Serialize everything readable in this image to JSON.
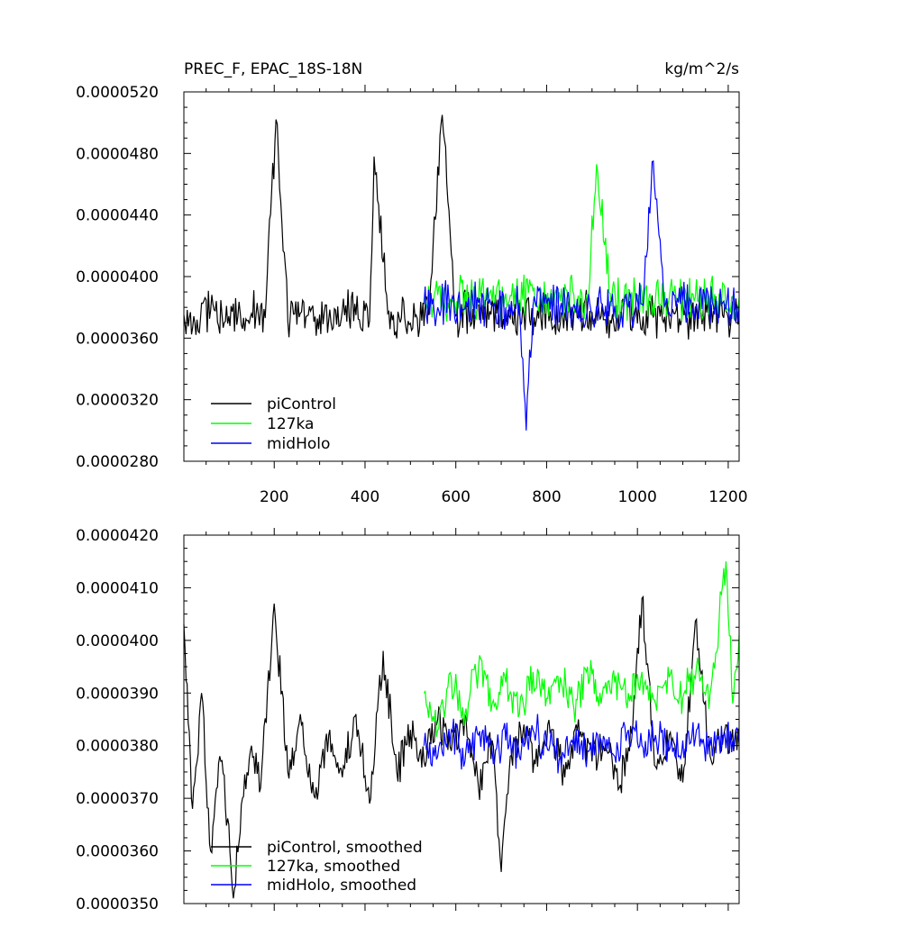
{
  "chart_data": [
    {
      "type": "line",
      "title_left": "PREC_F, EPAC_18S-18N",
      "title_right": "kg/m^2/s",
      "xlabel": "",
      "ylabel": "",
      "xlim": [
        1,
        1224
      ],
      "ylim": [
        2.8e-05,
        5.2e-05
      ],
      "x_ticks": [
        200,
        400,
        600,
        800,
        1000,
        1200
      ],
      "x_tick_labels": [
        "200",
        "400",
        "600",
        "800",
        "1000",
        "1200"
      ],
      "y_ticks": [
        2.8e-05,
        3.2e-05,
        3.6e-05,
        4e-05,
        4.4e-05,
        4.8e-05,
        5.2e-05
      ],
      "y_tick_labels": [
        "0.0000280",
        "0.0000320",
        "0.0000360",
        "0.0000400",
        "0.0000440",
        "0.0000480",
        "0.0000520"
      ],
      "grid": false,
      "legend_position": "bottom-left",
      "series": [
        {
          "name": "piControl",
          "color": "#000000",
          "x": [
            1,
            30,
            60,
            90,
            120,
            150,
            180,
            204,
            230,
            260,
            290,
            320,
            350,
            380,
            410,
            420,
            450,
            480,
            510,
            540,
            570,
            600,
            630,
            660,
            690,
            720,
            750,
            780,
            810,
            840,
            870,
            900,
            930,
            960,
            990,
            1020,
            1050,
            1080,
            1110,
            1140,
            1170,
            1200,
            1224
          ],
          "values": [
            3.75e-05,
            3.72e-05,
            3.78e-05,
            3.7e-05,
            3.74e-05,
            3.76e-05,
            3.73e-05,
            5.02e-05,
            3.71e-05,
            3.77e-05,
            3.74e-05,
            3.72e-05,
            3.78e-05,
            3.75e-05,
            3.71e-05,
            4.78e-05,
            3.76e-05,
            3.73e-05,
            3.74e-05,
            3.75e-05,
            5.05e-05,
            3.74e-05,
            3.77e-05,
            3.72e-05,
            3.76e-05,
            3.73e-05,
            3.75e-05,
            3.78e-05,
            3.71e-05,
            3.76e-05,
            3.74e-05,
            3.77e-05,
            3.72e-05,
            3.75e-05,
            3.73e-05,
            3.78e-05,
            3.74e-05,
            3.76e-05,
            3.72e-05,
            3.75e-05,
            3.77e-05,
            3.73e-05,
            3.75e-05
          ]
        },
        {
          "name": "127ka",
          "color": "#00ff00",
          "x": [
            530,
            560,
            590,
            620,
            650,
            680,
            710,
            740,
            770,
            800,
            830,
            860,
            890,
            910,
            940,
            970,
            1000,
            1030,
            1060,
            1090,
            1120,
            1150,
            1180,
            1210,
            1224
          ],
          "values": [
            3.85e-05,
            3.88e-05,
            3.83e-05,
            3.9e-05,
            3.86e-05,
            3.84e-05,
            3.89e-05,
            3.85e-05,
            3.91e-05,
            3.87e-05,
            3.84e-05,
            3.88e-05,
            3.86e-05,
            4.73e-05,
            3.89e-05,
            3.85e-05,
            3.88e-05,
            3.84e-05,
            3.9e-05,
            3.86e-05,
            3.89e-05,
            3.85e-05,
            3.88e-05,
            3.87e-05,
            3.86e-05
          ]
        },
        {
          "name": "midHolo",
          "color": "#0000ff",
          "x": [
            530,
            560,
            590,
            620,
            650,
            680,
            710,
            740,
            755,
            770,
            800,
            830,
            860,
            890,
            920,
            950,
            980,
            1010,
            1035,
            1060,
            1090,
            1120,
            1150,
            1180,
            1210,
            1224
          ],
          "values": [
            3.82e-05,
            3.8e-05,
            3.84e-05,
            3.79e-05,
            3.83e-05,
            3.81e-05,
            3.8e-05,
            3.83e-05,
            3e-05,
            3.81e-05,
            3.83e-05,
            3.8e-05,
            3.82e-05,
            3.79e-05,
            3.83e-05,
            3.81e-05,
            3.8e-05,
            3.82e-05,
            4.75e-05,
            3.81e-05,
            3.83e-05,
            3.8e-05,
            3.82e-05,
            3.81e-05,
            3.83e-05,
            3.81e-05
          ]
        }
      ]
    },
    {
      "type": "line",
      "xlim": [
        1,
        1224
      ],
      "ylim": [
        3.5e-05,
        4.2e-05
      ],
      "x_ticks": [
        200,
        400,
        600,
        800,
        1000,
        1200
      ],
      "y_ticks": [
        3.5e-05,
        3.6e-05,
        3.7e-05,
        3.8e-05,
        3.9e-05,
        4e-05,
        4.1e-05,
        4.2e-05
      ],
      "y_tick_labels": [
        "0.0000350",
        "0.0000360",
        "0.0000370",
        "0.0000380",
        "0.0000390",
        "0.0000400",
        "0.0000410",
        "0.0000420"
      ],
      "grid": false,
      "legend_position": "bottom-left",
      "series": [
        {
          "name": "piControl, smoothed",
          "color": "#000000",
          "x": [
            1,
            20,
            40,
            60,
            80,
            100,
            110,
            130,
            150,
            170,
            200,
            230,
            260,
            290,
            320,
            350,
            380,
            410,
            440,
            470,
            500,
            530,
            560,
            590,
            620,
            650,
            680,
            700,
            720,
            750,
            780,
            810,
            840,
            870,
            900,
            930,
            960,
            990,
            1010,
            1040,
            1070,
            1100,
            1130,
            1160,
            1190,
            1224
          ],
          "values": [
            4.03e-05,
            3.68e-05,
            3.9e-05,
            3.6e-05,
            3.78e-05,
            3.65e-05,
            3.51e-05,
            3.7e-05,
            3.8e-05,
            3.72e-05,
            4.07e-05,
            3.75e-05,
            3.84e-05,
            3.7e-05,
            3.82e-05,
            3.74e-05,
            3.86e-05,
            3.69e-05,
            3.98e-05,
            3.75e-05,
            3.83e-05,
            3.77e-05,
            3.85e-05,
            3.79e-05,
            3.86e-05,
            3.72e-05,
            3.81e-05,
            3.56e-05,
            3.78e-05,
            3.84e-05,
            3.76e-05,
            3.83e-05,
            3.74e-05,
            3.85e-05,
            3.77e-05,
            3.8e-05,
            3.72e-05,
            3.84e-05,
            4.08e-05,
            3.76e-05,
            3.82e-05,
            3.73e-05,
            4.04e-05,
            3.78e-05,
            3.82e-05,
            3.8e-05
          ]
        },
        {
          "name": "127ka, smoothed",
          "color": "#00ff00",
          "x": [
            530,
            560,
            590,
            620,
            650,
            680,
            710,
            740,
            770,
            800,
            830,
            860,
            890,
            920,
            950,
            980,
            1010,
            1040,
            1070,
            1100,
            1130,
            1160,
            1195,
            1210,
            1224
          ],
          "values": [
            3.9e-05,
            3.83e-05,
            3.93e-05,
            3.86e-05,
            3.95e-05,
            3.88e-05,
            3.92e-05,
            3.86e-05,
            3.94e-05,
            3.89e-05,
            3.93e-05,
            3.87e-05,
            3.95e-05,
            3.88e-05,
            3.92e-05,
            3.9e-05,
            3.94e-05,
            3.88e-05,
            3.93e-05,
            3.89e-05,
            3.95e-05,
            3.9e-05,
            4.15e-05,
            3.88e-05,
            4.01e-05
          ]
        },
        {
          "name": "midHolo, smoothed",
          "color": "#0000ff",
          "x": [
            530,
            560,
            590,
            620,
            650,
            680,
            710,
            740,
            770,
            800,
            830,
            860,
            890,
            920,
            950,
            980,
            1010,
            1040,
            1070,
            1100,
            1130,
            1160,
            1190,
            1210,
            1224
          ],
          "values": [
            3.8e-05,
            3.78e-05,
            3.83e-05,
            3.77e-05,
            3.82e-05,
            3.79e-05,
            3.81e-05,
            3.78e-05,
            3.83e-05,
            3.8e-05,
            3.78e-05,
            3.82e-05,
            3.79e-05,
            3.81e-05,
            3.78e-05,
            3.83e-05,
            3.8e-05,
            3.82e-05,
            3.79e-05,
            3.81e-05,
            3.83e-05,
            3.8e-05,
            3.82e-05,
            3.81e-05,
            3.81e-05
          ]
        }
      ]
    }
  ]
}
